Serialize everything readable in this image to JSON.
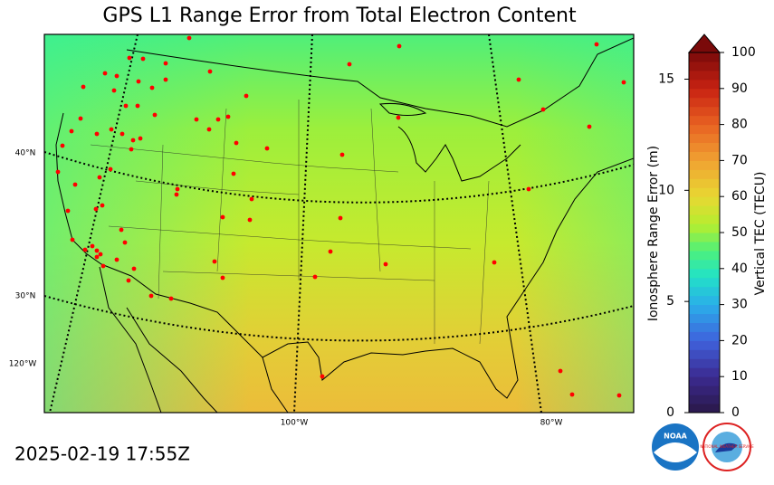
{
  "title": "GPS L1 Range Error from Total Electron Content",
  "timestamp": "2025-02-19 17:55Z",
  "map": {
    "lat_labels": [
      "40°N",
      "30°N"
    ],
    "lon_labels": [
      "120°W",
      "100°W",
      "80°W"
    ]
  },
  "colorbar": {
    "left_label": "Ionosphere Range Error (m)",
    "left_lim": [
      0,
      16.2
    ],
    "left_ticks": [
      0,
      5,
      10,
      15
    ],
    "right_label": "Vertical TEC (TECU)",
    "right_lim": [
      0,
      100
    ],
    "right_ticks": [
      0,
      10,
      20,
      30,
      40,
      50,
      60,
      70,
      80,
      90,
      100
    ]
  },
  "logos": {
    "noaa": "NOAA",
    "nws": "NATIONAL WEATHER SERVICE"
  }
}
